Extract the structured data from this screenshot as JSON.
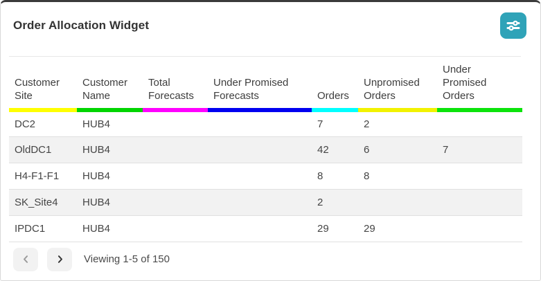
{
  "widget": {
    "title": "Order Allocation Widget",
    "accent_color": "#2fa3b8"
  },
  "toolbar": {
    "settings_icon": "sliders-icon"
  },
  "table": {
    "columns": [
      {
        "field": "customer_site",
        "label": "Customer Site",
        "underline_color": "#ffff00"
      },
      {
        "field": "customer_name",
        "label": "Customer Name",
        "underline_color": "#00d500"
      },
      {
        "field": "total_forecasts",
        "label": "Total Forecasts",
        "underline_color": "#ff00ff"
      },
      {
        "field": "under_promised_forecasts",
        "label": "Under Promised Forecasts",
        "underline_color": "#0000f0"
      },
      {
        "field": "orders",
        "label": "Orders",
        "underline_color": "#00ffff"
      },
      {
        "field": "unpromised_orders",
        "label": "Unpromised Orders",
        "underline_color": "#f2f200"
      },
      {
        "field": "under_promised_orders",
        "label": "Under Promised Orders",
        "underline_color": "#0ce30c"
      }
    ],
    "rows": [
      {
        "customer_site": "DC2",
        "customer_name": "HUB4",
        "total_forecasts": "",
        "under_promised_forecasts": "",
        "orders": "7",
        "unpromised_orders": "2",
        "under_promised_orders": ""
      },
      {
        "customer_site": "OldDC1",
        "customer_name": "HUB4",
        "total_forecasts": "",
        "under_promised_forecasts": "",
        "orders": "42",
        "unpromised_orders": "6",
        "under_promised_orders": "7"
      },
      {
        "customer_site": "H4-F1-F1",
        "customer_name": "HUB4",
        "total_forecasts": "",
        "under_promised_forecasts": "",
        "orders": "8",
        "unpromised_orders": "8",
        "under_promised_orders": ""
      },
      {
        "customer_site": "SK_Site4",
        "customer_name": "HUB4",
        "total_forecasts": "",
        "under_promised_forecasts": "",
        "orders": "2",
        "unpromised_orders": "",
        "under_promised_orders": ""
      },
      {
        "customer_site": "IPDC1",
        "customer_name": "HUB4",
        "total_forecasts": "",
        "under_promised_forecasts": "",
        "orders": "29",
        "unpromised_orders": "29",
        "under_promised_orders": ""
      }
    ]
  },
  "pagination": {
    "status": "Viewing 1-5 of 150"
  }
}
